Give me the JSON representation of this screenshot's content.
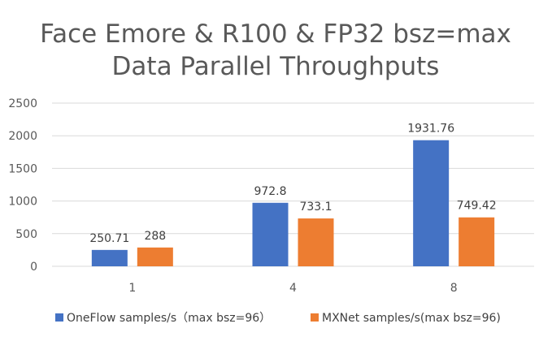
{
  "chart_data": {
    "type": "bar",
    "title": [
      "Face Emore & R100 & FP32 bsz=max",
      "Data Parallel Throughputs"
    ],
    "xlabel": "",
    "ylabel": "",
    "categories": [
      "1",
      "4",
      "8"
    ],
    "series": [
      {
        "name": "OneFlow samples/s（max bsz=96）",
        "values": [
          250.71,
          972.8,
          1931.76
        ],
        "labels": [
          "250.71",
          "972.8",
          "1931.76"
        ],
        "color": "#4472c4"
      },
      {
        "name": "MXNet samples/s(max bsz=96)",
        "values": [
          288,
          733.1,
          749.42
        ],
        "labels": [
          "288",
          "733.1",
          "749.42"
        ],
        "color": "#ed7d31"
      }
    ],
    "ylim": [
      0,
      2500
    ],
    "yticks": [
      0,
      500,
      1000,
      1500,
      2000,
      2500
    ],
    "grid": true,
    "legend_position": "bottom"
  }
}
